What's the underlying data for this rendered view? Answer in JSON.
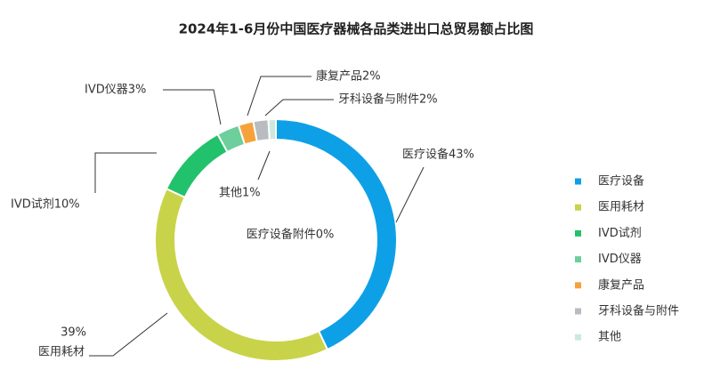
{
  "chart_data": {
    "type": "donut",
    "title": "2024年1-6月份中国医疗器械各品类进出口总贸易额占比图",
    "categories": [
      "医疗设备",
      "医用耗材",
      "IVD试剂",
      "IVD仪器",
      "康复产品",
      "牙科设备与附件",
      "其他",
      "医疗设备附件"
    ],
    "values": [
      43,
      39,
      10,
      3,
      2,
      2,
      1,
      0
    ],
    "value_labels": [
      [
        "医疗设备43%"
      ],
      [
        "39%",
        "医用耗材"
      ],
      [
        "IVD试剂10%"
      ],
      [
        "IVD仪器3%"
      ],
      [
        "康复产品2%"
      ],
      [
        "牙科设备与附件2%"
      ],
      [
        "其他1%"
      ],
      [
        "医疗设备附件0%"
      ]
    ],
    "colors": [
      "#0ea0e6",
      "#c9d34a",
      "#22c16b",
      "#6ccf9c",
      "#f6a23c",
      "#b8bcc0",
      "#cde8df",
      null
    ],
    "legend": "right"
  }
}
